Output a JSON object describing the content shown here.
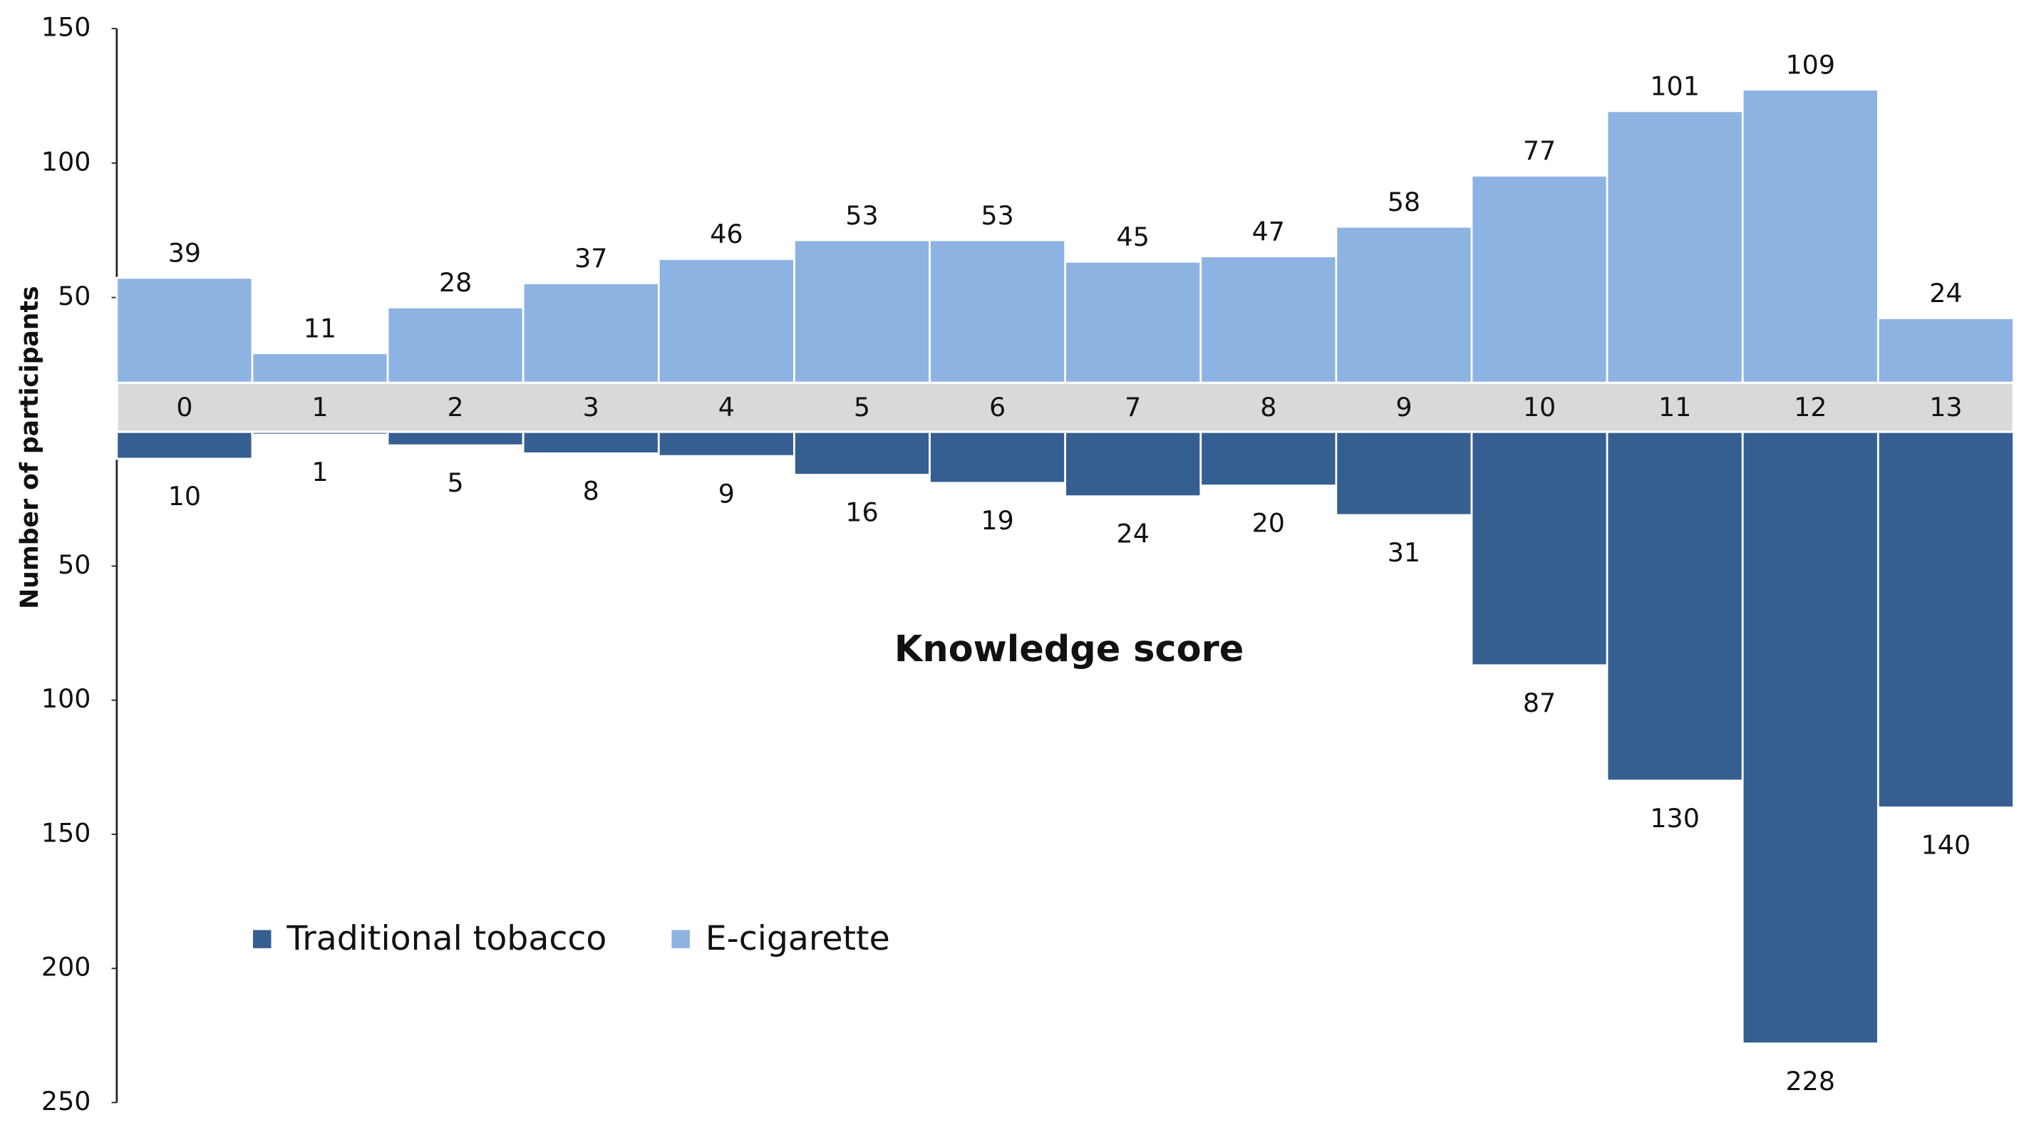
{
  "chart_data": {
    "type": "bar",
    "title": "Knowledge score",
    "y_label": "Number of participants",
    "categories": [
      "0",
      "1",
      "2",
      "3",
      "4",
      "5",
      "6",
      "7",
      "8",
      "9",
      "10",
      "11",
      "12",
      "13"
    ],
    "series": [
      {
        "name": "Traditional tobacco",
        "color": "#365f91",
        "axis": "y2",
        "values": [
          10,
          1,
          5,
          8,
          9,
          16,
          19,
          24,
          20,
          31,
          87,
          130,
          228,
          140
        ]
      },
      {
        "name": "E-cigarette",
        "color": "#8db3e2",
        "values": [
          39,
          11,
          28,
          37,
          46,
          53,
          53,
          45,
          47,
          58,
          77,
          101,
          109,
          24
        ]
      }
    ],
    "ylim": [
      0,
      150
    ],
    "yticks": [
      50,
      100,
      150
    ],
    "y2lim": [
      0,
      250
    ],
    "y2ticks": [
      50,
      100,
      150,
      200,
      250
    ],
    "legend": "lower left"
  }
}
